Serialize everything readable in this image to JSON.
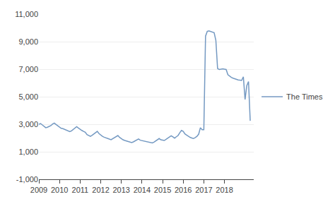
{
  "chart_data": {
    "type": "line",
    "x": [
      2009.0,
      2009.083,
      2009.167,
      2009.25,
      2009.333,
      2009.417,
      2009.5,
      2009.583,
      2009.667,
      2009.75,
      2009.833,
      2009.917,
      2010.0,
      2010.083,
      2010.167,
      2010.25,
      2010.333,
      2010.417,
      2010.5,
      2010.583,
      2010.667,
      2010.75,
      2010.833,
      2010.917,
      2011.0,
      2011.083,
      2011.167,
      2011.25,
      2011.333,
      2011.417,
      2011.5,
      2011.583,
      2011.667,
      2011.75,
      2011.833,
      2011.917,
      2012.0,
      2012.083,
      2012.167,
      2012.25,
      2012.333,
      2012.417,
      2012.5,
      2012.583,
      2012.667,
      2012.75,
      2012.833,
      2012.917,
      2013.0,
      2013.083,
      2013.167,
      2013.25,
      2013.333,
      2013.417,
      2013.5,
      2013.583,
      2013.667,
      2013.75,
      2013.833,
      2013.917,
      2014.0,
      2014.083,
      2014.167,
      2014.25,
      2014.333,
      2014.417,
      2014.5,
      2014.583,
      2014.667,
      2014.75,
      2014.833,
      2014.917,
      2015.0,
      2015.083,
      2015.167,
      2015.25,
      2015.333,
      2015.417,
      2015.5,
      2015.583,
      2015.667,
      2015.75,
      2015.833,
      2015.917,
      2016.0,
      2016.083,
      2016.167,
      2016.25,
      2016.333,
      2016.417,
      2016.5,
      2016.583,
      2016.667,
      2016.75,
      2016.833,
      2016.917,
      2017.0,
      2017.083,
      2017.167,
      2017.25,
      2017.333,
      2017.417,
      2017.5,
      2017.583,
      2017.667,
      2017.75,
      2017.833,
      2017.917,
      2018.0,
      2018.083,
      2018.167,
      2018.25,
      2018.333,
      2018.417,
      2018.5,
      2018.583,
      2018.667,
      2018.75,
      2018.833,
      2018.917,
      2019.0,
      2019.083,
      2019.167,
      2019.25
    ],
    "series": [
      {
        "name": "The Times",
        "color": "#7499c2",
        "values": [
          3000,
          3050,
          2950,
          2850,
          2750,
          2780,
          2820,
          2900,
          3020,
          3080,
          2980,
          2900,
          2780,
          2700,
          2680,
          2620,
          2550,
          2500,
          2460,
          2520,
          2620,
          2750,
          2820,
          2720,
          2620,
          2550,
          2480,
          2420,
          2250,
          2180,
          2120,
          2200,
          2300,
          2400,
          2480,
          2320,
          2200,
          2120,
          2060,
          2000,
          1960,
          1920,
          1880,
          1960,
          2050,
          2130,
          2180,
          2040,
          1930,
          1870,
          1820,
          1780,
          1740,
          1700,
          1670,
          1720,
          1800,
          1880,
          1930,
          1840,
          1810,
          1770,
          1740,
          1720,
          1680,
          1660,
          1640,
          1700,
          1790,
          1870,
          1960,
          1870,
          1860,
          1820,
          1900,
          1990,
          2080,
          2160,
          2080,
          1990,
          2090,
          2180,
          2380,
          2550,
          2480,
          2300,
          2210,
          2120,
          2050,
          2000,
          1960,
          2030,
          2120,
          2280,
          2750,
          2600,
          2600,
          9400,
          9750,
          9780,
          9750,
          9700,
          9650,
          9100,
          7050,
          6980,
          7000,
          7020,
          7000,
          6980,
          6600,
          6500,
          6400,
          6350,
          6300,
          6250,
          6220,
          6200,
          6180,
          6450,
          4800,
          5800,
          6100,
          3250
        ]
      }
    ],
    "xlim": [
      2009.0,
      2019.42
    ],
    "xticks": [
      2009,
      2010,
      2011,
      2012,
      2013,
      2014,
      2015,
      2016,
      2017,
      2018
    ],
    "ylim": [
      -1000,
      11000
    ],
    "yticks": [
      {
        "value": -1000,
        "label": "-1,000"
      },
      {
        "value": 1000,
        "label": "1,000"
      },
      {
        "value": 3000,
        "label": "3,000"
      },
      {
        "value": 5000,
        "label": "5,000"
      },
      {
        "value": 7000,
        "label": "7,000"
      },
      {
        "value": 9000,
        "label": "9,000"
      },
      {
        "value": 11000,
        "label": "11,000"
      }
    ],
    "grid": true,
    "legend": "right"
  }
}
